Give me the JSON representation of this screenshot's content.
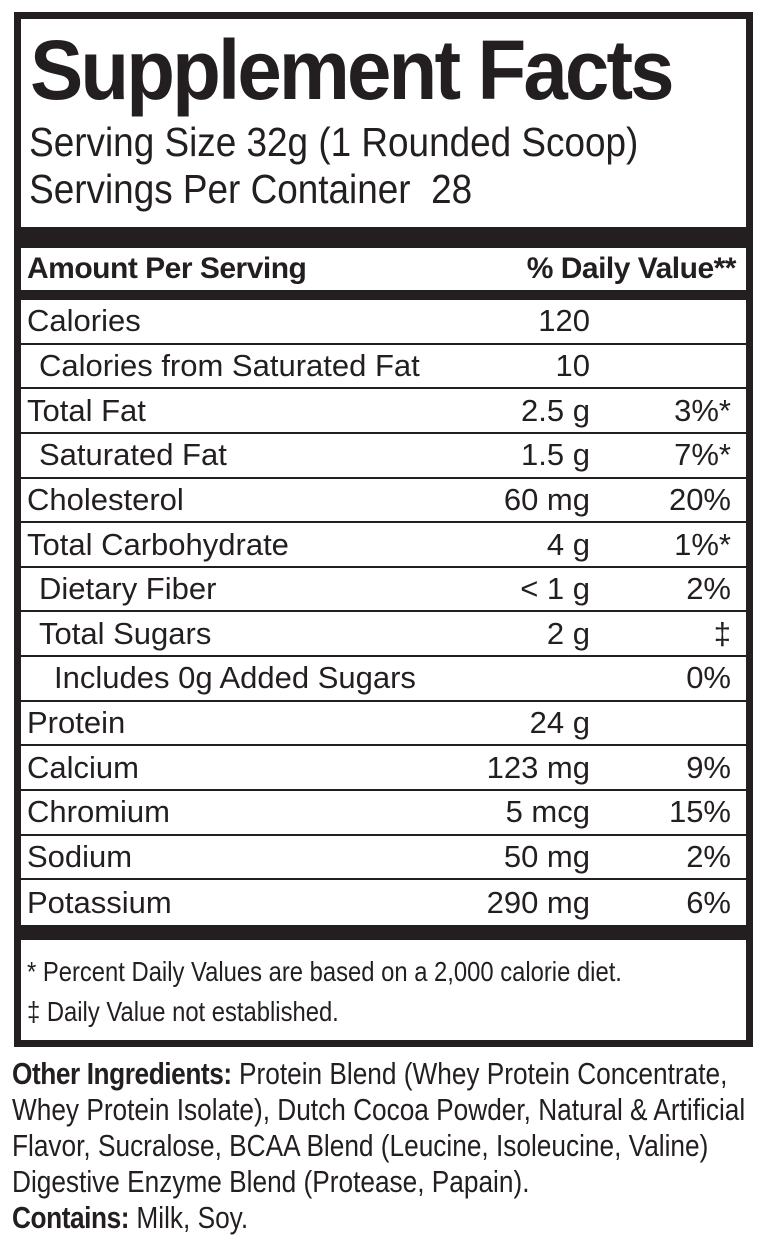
{
  "label": {
    "title": "Supplement Facts",
    "serving_size": "Serving Size 32g (1 Rounded Scoop)",
    "servings_per_container": "Servings Per Container  28",
    "header": {
      "left": "Amount Per Serving",
      "right": "% Daily Value**"
    },
    "rows": [
      {
        "label": "Calories",
        "amount": "120",
        "dv": "",
        "indent": 0
      },
      {
        "label": "Calories from Saturated Fat",
        "amount": "10",
        "dv": "",
        "indent": 1
      },
      {
        "label": "Total Fat",
        "amount": "2.5 g",
        "dv": "3%*",
        "indent": 0
      },
      {
        "label": "Saturated Fat",
        "amount": "1.5 g",
        "dv": "7%*",
        "indent": 1
      },
      {
        "label": "Cholesterol",
        "amount": "60 mg",
        "dv": "20%",
        "indent": 0
      },
      {
        "label": "Total Carbohydrate",
        "amount": "4 g",
        "dv": "1%*",
        "indent": 0
      },
      {
        "label": "Dietary Fiber",
        "amount": "< 1 g",
        "dv": "2%",
        "indent": 1
      },
      {
        "label": "Total Sugars",
        "amount": "2 g",
        "dv": "‡",
        "indent": 1
      },
      {
        "label": "Includes 0g Added Sugars",
        "amount": "",
        "dv": "0%",
        "indent": 2
      },
      {
        "label": "Protein",
        "amount": "24 g",
        "dv": "",
        "indent": 0
      },
      {
        "label": "Calcium",
        "amount": "123 mg",
        "dv": "9%",
        "indent": 0
      },
      {
        "label": "Chromium",
        "amount": "5 mcg",
        "dv": "15%",
        "indent": 0
      },
      {
        "label": "Sodium",
        "amount": "50 mg",
        "dv": "2%",
        "indent": 0
      },
      {
        "label": "Potassium",
        "amount": "290 mg",
        "dv": "6%",
        "indent": 0
      }
    ],
    "footnotes": [
      "* Percent Daily Values are based on a 2,000 calorie diet.",
      "‡ Daily Value not established."
    ],
    "other_ingredients": {
      "label": "Other Ingredients:",
      "text": "Protein Blend (Whey Protein Concentrate, Whey Protein Isolate), Dutch Cocoa Powder, Natural & Artificial Flavor, Sucralose, BCAA Blend (Leucine, Isoleucine, Valine) Digestive Enzyme Blend (Protease, Papain)."
    },
    "contains": {
      "label": "Contains:",
      "text": "Milk, Soy."
    },
    "colors": {
      "ink": "#231f20",
      "background": "#ffffff"
    }
  }
}
